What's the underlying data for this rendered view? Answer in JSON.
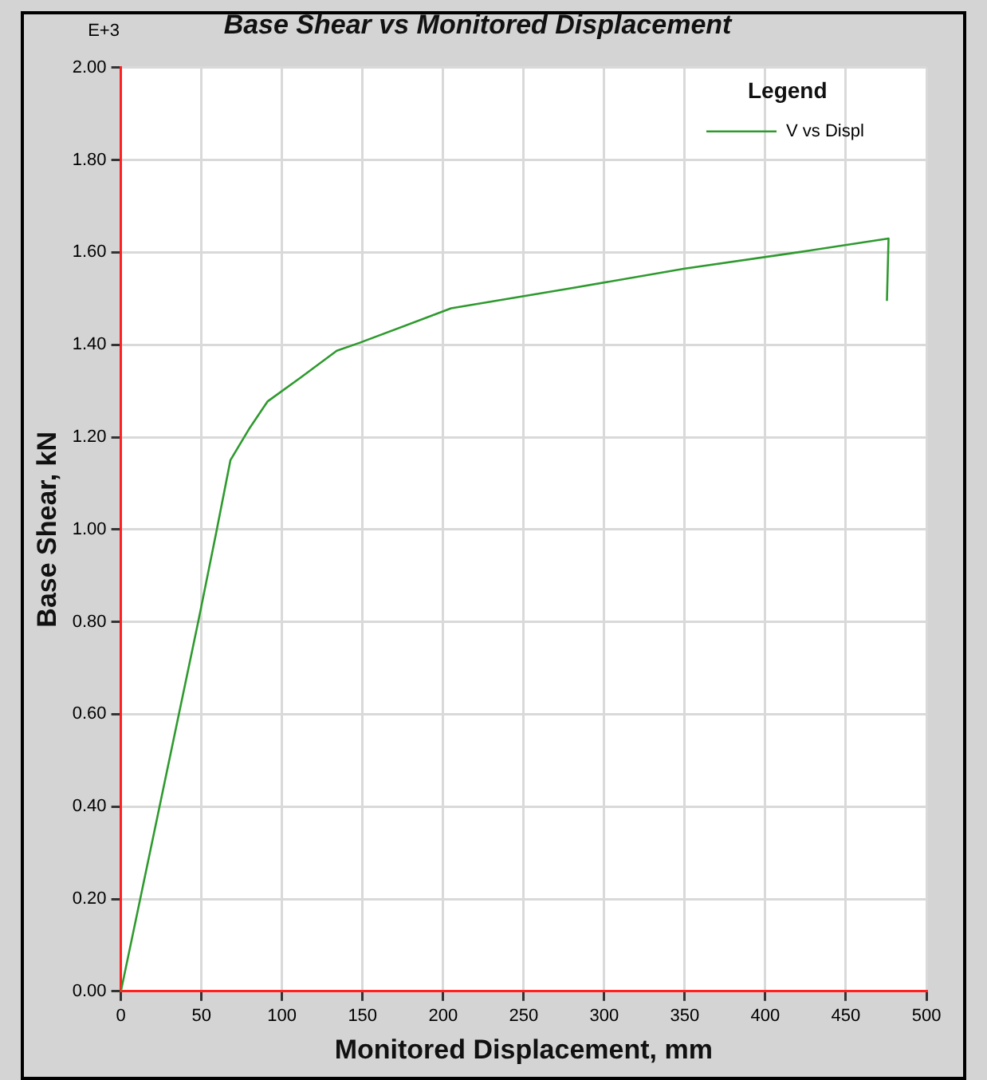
{
  "chart_data": {
    "type": "line",
    "title": "Base Shear vs Monitored Displacement",
    "xlabel": "Monitored Displacement, mm",
    "ylabel": "Base Shear, kN",
    "legend_title": "Legend",
    "annotations": [
      "E+3"
    ],
    "series": [
      {
        "name": "V vs Displ",
        "color": "#2e9a2e",
        "x": [
          0,
          48,
          59,
          68,
          80,
          91,
          112,
          134,
          148,
          205,
          279,
          350,
          420,
          476.5,
          475.5
        ],
        "values": [
          0,
          0.8,
          0.99,
          1.15,
          1.22,
          1.277,
          1.33,
          1.387,
          1.404,
          1.479,
          1.522,
          1.565,
          1.6,
          1.63,
          1.495
        ]
      }
    ],
    "xlim": [
      0,
      500
    ],
    "xticks": [
      0,
      50,
      100,
      150,
      200,
      250,
      300,
      350,
      400,
      450,
      500
    ],
    "ylim": [
      0,
      2
    ],
    "yticks": [
      {
        "value": 0,
        "label": "0.00"
      },
      {
        "value": 0.2,
        "label": "0.20"
      },
      {
        "value": 0.4,
        "label": "0.40"
      },
      {
        "value": 0.6,
        "label": "0.60"
      },
      {
        "value": 0.8,
        "label": "0.80"
      },
      {
        "value": 1,
        "label": "1.00"
      },
      {
        "value": 1.2,
        "label": "1.20"
      },
      {
        "value": 1.4,
        "label": "1.40"
      },
      {
        "value": 1.6,
        "label": "1.60"
      },
      {
        "value": 1.8,
        "label": "1.80"
      },
      {
        "value": 2,
        "label": "2.00"
      }
    ],
    "grid": true,
    "legend": "top right",
    "marker": "none",
    "line_style": "solid"
  }
}
